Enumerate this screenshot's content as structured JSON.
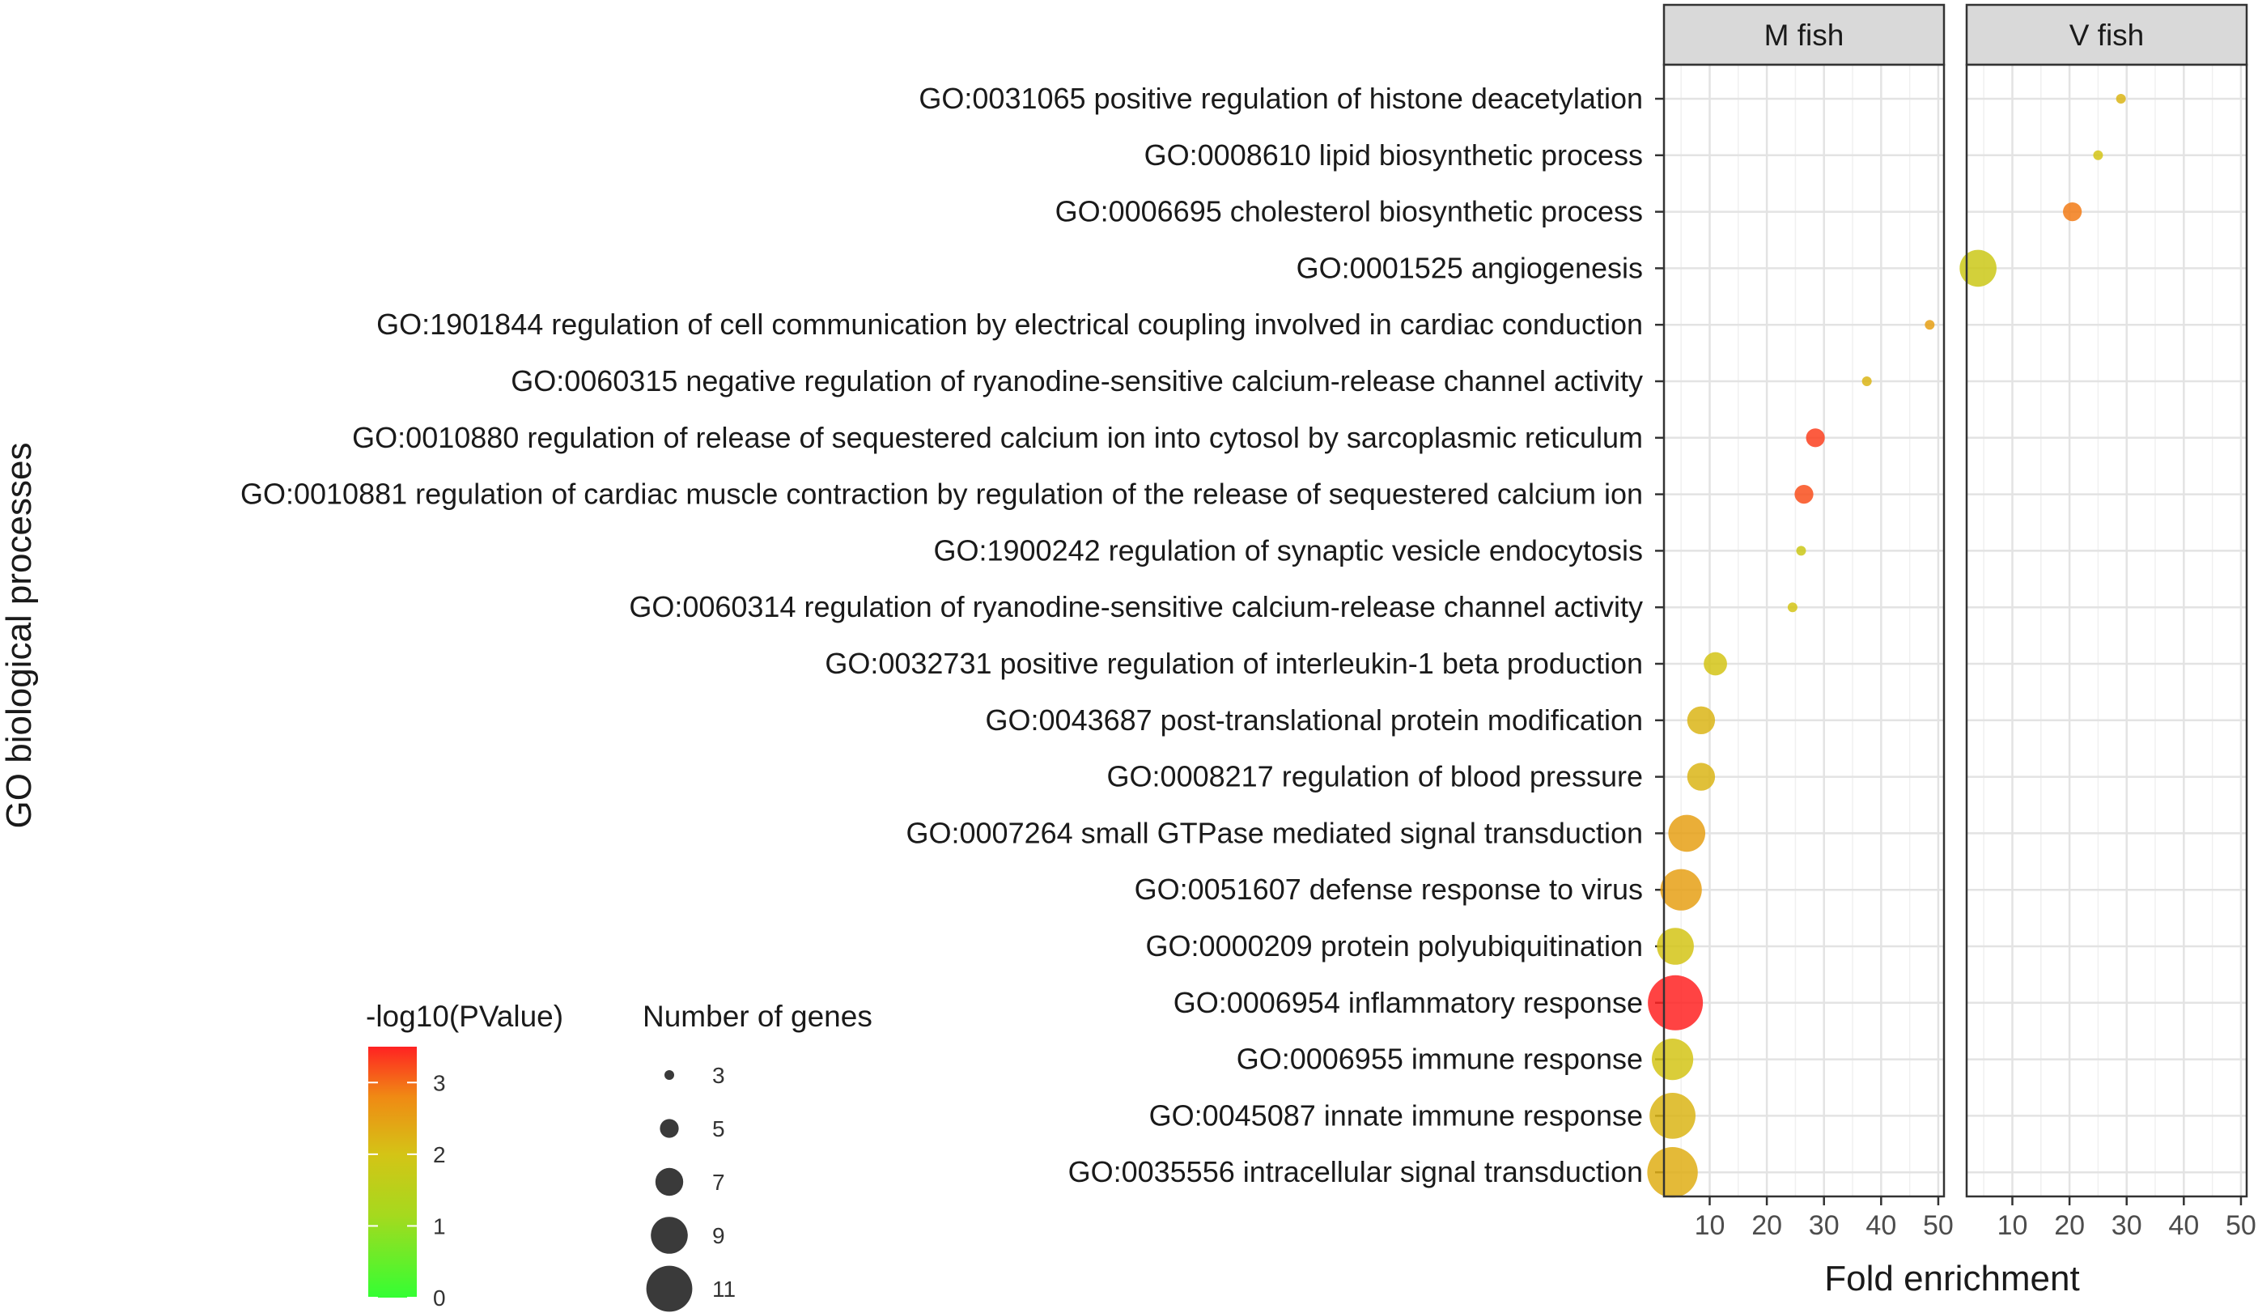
{
  "chart_data": {
    "type": "scatter",
    "subtype": "faceted bubble chart",
    "xlabel": "Fold enrichment",
    "ylabel": "GO biological processes",
    "xlim": [
      2,
      51
    ],
    "xticks": [
      10,
      20,
      30,
      40,
      50
    ],
    "grid": true,
    "facets": [
      "M fish",
      "V fish"
    ],
    "categories": [
      "GO:0031065 positive regulation of histone deacetylation",
      "GO:0008610 lipid biosynthetic process",
      "GO:0006695 cholesterol biosynthetic process",
      "GO:0001525 angiogenesis",
      "GO:1901844 regulation of cell communication by electrical coupling involved in cardiac conduction",
      "GO:0060315 negative regulation of ryanodine-sensitive calcium-release channel activity",
      "GO:0010880 regulation of release of sequestered calcium ion into cytosol by sarcoplasmic reticulum",
      "GO:0010881 regulation of cardiac muscle contraction by regulation of the release of sequestered calcium ion",
      "GO:1900242 regulation of synaptic vesicle endocytosis",
      "GO:0060314 regulation of ryanodine-sensitive calcium-release channel activity",
      "GO:0032731 positive regulation of interleukin-1 beta production",
      "GO:0043687 post-translational protein modification",
      "GO:0008217 regulation of blood pressure",
      "GO:0007264 small GTPase mediated signal transduction",
      "GO:0051607 defense response to virus",
      "GO:0000209 protein polyubiquitination",
      "GO:0006954 inflammatory response",
      "GO:0006955 immune response",
      "GO:0045087 innate immune response",
      "GO:0035556 intracellular signal transduction"
    ],
    "points": [
      {
        "facet": "V fish",
        "term": "GO:0031065 positive regulation of histone deacetylation",
        "fold_enrichment": 29,
        "genes": 3,
        "neg_log10_p": 2.2
      },
      {
        "facet": "V fish",
        "term": "GO:0008610 lipid biosynthetic process",
        "fold_enrichment": 25,
        "genes": 3,
        "neg_log10_p": 2.0
      },
      {
        "facet": "V fish",
        "term": "GO:0006695 cholesterol biosynthetic process",
        "fold_enrichment": 20.5,
        "genes": 5,
        "neg_log10_p": 2.9
      },
      {
        "facet": "V fish",
        "term": "GO:0001525 angiogenesis",
        "fold_enrichment": 4,
        "genes": 9,
        "neg_log10_p": 1.9
      },
      {
        "facet": "M fish",
        "term": "GO:1901844 regulation of cell communication by electrical coupling involved in cardiac conduction",
        "fold_enrichment": 48.5,
        "genes": 3,
        "neg_log10_p": 2.5
      },
      {
        "facet": "M fish",
        "term": "GO:0060315 negative regulation of ryanodine-sensitive calcium-release channel activity",
        "fold_enrichment": 37.5,
        "genes": 3,
        "neg_log10_p": 2.2
      },
      {
        "facet": "M fish",
        "term": "GO:0010880 regulation of release of sequestered calcium ion into cytosol by sarcoplasmic reticulum",
        "fold_enrichment": 28.5,
        "genes": 5,
        "neg_log10_p": 3.3
      },
      {
        "facet": "M fish",
        "term": "GO:0010881 regulation of cardiac muscle contraction by regulation of the release of sequestered calcium ion",
        "fold_enrichment": 26.5,
        "genes": 5,
        "neg_log10_p": 3.2
      },
      {
        "facet": "M fish",
        "term": "GO:1900242 regulation of synaptic vesicle endocytosis",
        "fold_enrichment": 26,
        "genes": 3,
        "neg_log10_p": 1.9
      },
      {
        "facet": "M fish",
        "term": "GO:0060314 regulation of ryanodine-sensitive calcium-release channel activity",
        "fold_enrichment": 24.5,
        "genes": 3,
        "neg_log10_p": 2.0
      },
      {
        "facet": "M fish",
        "term": "GO:0032731 positive regulation of interleukin-1 beta production",
        "fold_enrichment": 11,
        "genes": 6,
        "neg_log10_p": 2.0
      },
      {
        "facet": "M fish",
        "term": "GO:0043687 post-translational protein modification",
        "fold_enrichment": 8.5,
        "genes": 7,
        "neg_log10_p": 2.2
      },
      {
        "facet": "M fish",
        "term": "GO:0008217 regulation of blood pressure",
        "fold_enrichment": 8.5,
        "genes": 7,
        "neg_log10_p": 2.2
      },
      {
        "facet": "M fish",
        "term": "GO:0007264 small GTPase mediated signal transduction",
        "fold_enrichment": 6,
        "genes": 9,
        "neg_log10_p": 2.5
      },
      {
        "facet": "M fish",
        "term": "GO:0051607 defense response to virus",
        "fold_enrichment": 5,
        "genes": 10,
        "neg_log10_p": 2.5
      },
      {
        "facet": "M fish",
        "term": "GO:0000209 protein polyubiquitination",
        "fold_enrichment": 4,
        "genes": 9,
        "neg_log10_p": 2.0
      },
      {
        "facet": "M fish",
        "term": "GO:0006954 inflammatory response",
        "fold_enrichment": 4,
        "genes": 13,
        "neg_log10_p": 3.5
      },
      {
        "facet": "M fish",
        "term": "GO:0006955 immune response",
        "fold_enrichment": 3.5,
        "genes": 10,
        "neg_log10_p": 2.0
      },
      {
        "facet": "M fish",
        "term": "GO:0045087 innate immune response",
        "fold_enrichment": 3.5,
        "genes": 11,
        "neg_log10_p": 2.2
      },
      {
        "facet": "M fish",
        "term": "GO:0035556 intracellular signal transduction",
        "fold_enrichment": 3.5,
        "genes": 12,
        "neg_log10_p": 2.3
      }
    ],
    "color_legend": {
      "title": "-log10(PValue)",
      "ticks": [
        0,
        1,
        2,
        3
      ],
      "range": [
        0,
        3.5
      ],
      "colors": [
        "#33ff33",
        "#d4c416",
        "#f08a14",
        "#ff2a2a"
      ]
    },
    "size_legend": {
      "title": "Number of genes",
      "values": [
        3,
        5,
        7,
        9,
        11
      ]
    },
    "legend_position": "bottom-left"
  }
}
